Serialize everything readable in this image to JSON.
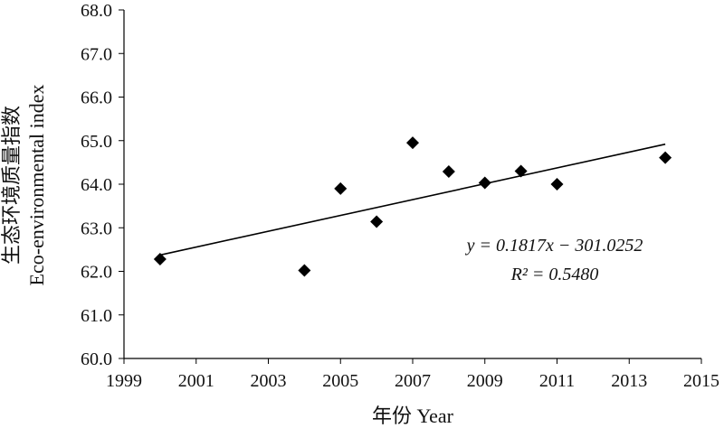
{
  "chart_data": {
    "type": "scatter",
    "title": "",
    "xlabel": "年份 Year",
    "ylabel_line1": "生态环境质量指数",
    "ylabel_line2": "Eco-environmental index",
    "xlim": [
      1999,
      2015
    ],
    "ylim": [
      60.0,
      68.0
    ],
    "x_ticks": [
      "1999",
      "2001",
      "2003",
      "2005",
      "2007",
      "2009",
      "2011",
      "2013",
      "2015"
    ],
    "y_ticks": [
      "60.0",
      "61.0",
      "62.0",
      "63.0",
      "64.0",
      "65.0",
      "66.0",
      "67.0",
      "68.0"
    ],
    "grid": false,
    "legend": false,
    "marker": "diamond",
    "series": [
      {
        "points": [
          {
            "x": 2000,
            "y": 62.28
          },
          {
            "x": 2004,
            "y": 62.02
          },
          {
            "x": 2005,
            "y": 63.9
          },
          {
            "x": 2006,
            "y": 63.14
          },
          {
            "x": 2007,
            "y": 64.95
          },
          {
            "x": 2008,
            "y": 64.29
          },
          {
            "x": 2009,
            "y": 64.03
          },
          {
            "x": 2010,
            "y": 64.3
          },
          {
            "x": 2011,
            "y": 64.0
          },
          {
            "x": 2014,
            "y": 64.61
          }
        ]
      }
    ],
    "trendline": {
      "slope": 0.1817,
      "intercept": -301.0252,
      "x_range": [
        2000,
        2014
      ],
      "equation_text": "y = 0.1817x − 301.0252",
      "r2_text": "R² = 0.5480"
    }
  }
}
